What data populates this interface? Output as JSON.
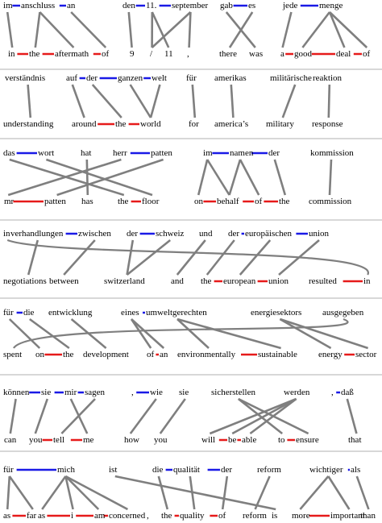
{
  "colors": {
    "link": "#7f7f7f",
    "german_phrase": "#1a1ae6",
    "english_phrase": "#e61a1a",
    "separator": "#b0b0b0"
  },
  "panels": [
    {
      "groups": [
        {
          "top": [
            "im",
            "anschluss",
            "an"
          ],
          "bottom": [
            "in",
            "the",
            "aftermath",
            "of"
          ],
          "top_phrases": [
            [
              0,
              1
            ],
            [
              1,
              2
            ]
          ],
          "bottom_phrases": [
            [
              0,
              1
            ],
            [
              1,
              2
            ],
            [
              2,
              3
            ]
          ],
          "links": [
            [
              0,
              0
            ],
            [
              1,
              1
            ],
            [
              1,
              2
            ],
            [
              2,
              3
            ]
          ]
        },
        {
          "top": [
            "den",
            "11.",
            "september"
          ],
          "bottom": [
            "9",
            "/",
            "11",
            ","
          ],
          "top_phrases": [
            [
              0,
              1
            ],
            [
              1,
              2
            ]
          ],
          "bottom_phrases": [],
          "links": [
            [
              0,
              0
            ],
            [
              1,
              1
            ],
            [
              1,
              2
            ],
            [
              2,
              1
            ],
            [
              2,
              3
            ]
          ]
        },
        {
          "top": [
            "gab",
            "es"
          ],
          "bottom": [
            "there",
            "was"
          ],
          "top_phrases": [
            [
              0,
              1
            ]
          ],
          "bottom_phrases": [],
          "links": [
            [
              0,
              1
            ],
            [
              1,
              0
            ]
          ]
        },
        {
          "top": [
            "jede",
            "menge"
          ],
          "bottom": [
            "a",
            "good",
            "deal",
            "of"
          ],
          "top_phrases": [
            [
              0,
              1
            ]
          ],
          "bottom_phrases": [
            [
              0,
              1
            ],
            [
              1,
              2
            ],
            [
              2,
              3
            ]
          ],
          "links": [
            [
              0,
              0
            ],
            [
              1,
              1
            ],
            [
              1,
              2
            ],
            [
              1,
              3
            ]
          ]
        }
      ]
    },
    {
      "groups": [
        {
          "top": [
            "verständnis"
          ],
          "bottom": [
            "understanding"
          ],
          "top_phrases": [],
          "bottom_phrases": [],
          "links": [
            [
              0,
              0
            ]
          ]
        },
        {
          "top": [
            "auf",
            "der",
            "ganzen",
            "welt"
          ],
          "bottom": [
            "around",
            "the",
            "world"
          ],
          "top_phrases": [
            [
              0,
              1
            ],
            [
              1,
              2
            ],
            [
              2,
              3
            ]
          ],
          "bottom_phrases": [
            [
              0,
              1
            ],
            [
              1,
              2
            ]
          ],
          "links": [
            [
              0,
              0
            ],
            [
              1,
              1
            ],
            [
              2,
              2
            ],
            [
              3,
              2
            ]
          ]
        },
        {
          "top": [
            "für"
          ],
          "bottom": [
            "for"
          ],
          "top_phrases": [],
          "bottom_phrases": [],
          "links": [
            [
              0,
              0
            ]
          ]
        },
        {
          "top": [
            "amerikas"
          ],
          "bottom": [
            "america’s"
          ],
          "top_phrases": [],
          "bottom_phrases": [],
          "links": [
            [
              0,
              0
            ]
          ]
        },
        {
          "top": [
            "militärische"
          ],
          "bottom": [
            "military"
          ],
          "top_phrases": [],
          "bottom_phrases": [],
          "links": [
            [
              0,
              0
            ]
          ]
        },
        {
          "top": [
            "reaktion"
          ],
          "bottom": [
            "response"
          ],
          "top_phrases": [],
          "bottom_phrases": [],
          "links": [
            [
              0,
              0
            ]
          ]
        }
      ]
    },
    {
      "groups": [
        {
          "top": [
            "das",
            "wort",
            "hat",
            "herr",
            "patten"
          ],
          "bottom": [
            "mr",
            "patten",
            "has",
            "the",
            "floor"
          ],
          "top_phrases": [
            [
              0,
              1
            ],
            [
              3,
              4
            ]
          ],
          "bottom_phrases": [
            [
              0,
              1
            ],
            [
              3,
              4
            ]
          ],
          "links": [
            [
              0,
              3
            ],
            [
              1,
              4
            ],
            [
              2,
              2
            ],
            [
              3,
              0
            ],
            [
              4,
              1
            ]
          ]
        },
        {
          "top": [
            "im",
            "namen",
            "der"
          ],
          "bottom": [
            "on",
            "behalf",
            "of",
            "the"
          ],
          "top_phrases": [
            [
              0,
              1
            ],
            [
              1,
              2
            ]
          ],
          "bottom_phrases": [
            [
              0,
              1
            ],
            [
              1,
              2
            ],
            [
              2,
              3
            ]
          ],
          "links": [
            [
              0,
              0
            ],
            [
              0,
              1
            ],
            [
              1,
              1
            ],
            [
              1,
              2
            ],
            [
              2,
              3
            ]
          ]
        },
        {
          "top": [
            "kommission"
          ],
          "bottom": [
            "commission"
          ],
          "top_phrases": [],
          "bottom_phrases": [],
          "links": [
            [
              0,
              0
            ]
          ]
        }
      ]
    },
    {
      "groups": [
        {
          "top": [
            "in",
            "verhandlungen",
            "zwischen",
            "der",
            "schweiz",
            "und",
            "der",
            "europäischen",
            "union"
          ],
          "bottom": [
            "negotiations",
            "between",
            "switzerland",
            "and",
            "the",
            "european",
            "union",
            "resulted",
            "in"
          ],
          "top_phrases": [
            [
              1,
              2
            ],
            [
              3,
              4
            ],
            [
              6,
              7
            ],
            [
              7,
              8
            ]
          ],
          "bottom_phrases": [
            [
              0,
              1
            ],
            [
              4,
              5
            ],
            [
              5,
              6
            ],
            [
              7,
              8
            ]
          ],
          "links": [
            [
              0,
              8
            ],
            [
              1,
              0
            ],
            [
              2,
              1
            ],
            [
              3,
              2
            ],
            [
              4,
              2
            ],
            [
              5,
              3
            ],
            [
              6,
              4
            ],
            [
              7,
              5
            ],
            [
              8,
              6
            ]
          ]
        }
      ]
    },
    {
      "groups": [
        {
          "top": [
            "für",
            "die",
            "entwicklung",
            "eines",
            "umweltgerechten",
            "energiesektors",
            "ausgegeben"
          ],
          "bottom": [
            "spent",
            "on",
            "the",
            "development",
            "of",
            "an",
            "environmentally",
            "sustainable",
            "energy",
            "sector"
          ],
          "top_phrases": [
            [
              0,
              1
            ],
            [
              3,
              4
            ]
          ],
          "bottom_phrases": [
            [
              1,
              2
            ],
            [
              4,
              5
            ],
            [
              6,
              7
            ],
            [
              8,
              9
            ]
          ],
          "links": [
            [
              0,
              1
            ],
            [
              1,
              2
            ],
            [
              2,
              3
            ],
            [
              3,
              4
            ],
            [
              3,
              5
            ],
            [
              4,
              6
            ],
            [
              4,
              7
            ],
            [
              5,
              8
            ],
            [
              5,
              9
            ],
            [
              6,
              0
            ]
          ]
        }
      ]
    },
    {
      "groups": [
        {
          "top": [
            "können",
            "sie",
            "mir",
            "sagen",
            ",",
            "wie",
            "sie",
            "sicherstellen",
            "werden",
            ",",
            "daß"
          ],
          "bottom": [
            "can",
            "you",
            "tell",
            "me",
            "how",
            "you",
            "will",
            "be",
            "able",
            "to",
            "ensure",
            "that"
          ],
          "top_phrases": [
            [
              0,
              1
            ],
            [
              1,
              2
            ],
            [
              2,
              3
            ],
            [
              4,
              5
            ],
            [
              9,
              10
            ]
          ],
          "bottom_phrases": [
            [
              1,
              2
            ],
            [
              2,
              3
            ],
            [
              6,
              7
            ],
            [
              7,
              8
            ],
            [
              9,
              10
            ]
          ],
          "links": [
            [
              0,
              0
            ],
            [
              1,
              1
            ],
            [
              2,
              3
            ],
            [
              3,
              2
            ],
            [
              5,
              4
            ],
            [
              6,
              5
            ],
            [
              7,
              9
            ],
            [
              7,
              10
            ],
            [
              8,
              6
            ],
            [
              8,
              7
            ],
            [
              8,
              8
            ],
            [
              10,
              11
            ]
          ]
        }
      ]
    },
    {
      "groups": [
        {
          "top": [
            "für",
            "mich",
            "ist",
            "die",
            "qualität",
            "der",
            "reform",
            "wichtiger",
            "als"
          ],
          "bottom": [
            "as",
            "far",
            "as",
            "i",
            "am",
            "concerned",
            ",",
            "the",
            "quality",
            "of",
            "reform",
            "is",
            "more",
            "important",
            "than"
          ],
          "top_phrases": [
            [
              0,
              1
            ],
            [
              3,
              4
            ],
            [
              4,
              5
            ],
            [
              7,
              8
            ]
          ],
          "bottom_phrases": [
            [
              0,
              1
            ],
            [
              1,
              2
            ],
            [
              2,
              3
            ],
            [
              3,
              4
            ],
            [
              4,
              5
            ],
            [
              7,
              8
            ],
            [
              8,
              9
            ],
            [
              12,
              13
            ],
            [
              13,
              14
            ]
          ],
          "links": [
            [
              0,
              0
            ],
            [
              0,
              1
            ],
            [
              1,
              2
            ],
            [
              1,
              3
            ],
            [
              1,
              4
            ],
            [
              1,
              5
            ],
            [
              2,
              11
            ],
            [
              3,
              7
            ],
            [
              4,
              8
            ],
            [
              5,
              9
            ],
            [
              6,
              10
            ],
            [
              7,
              12
            ],
            [
              7,
              13
            ],
            [
              8,
              14
            ]
          ]
        }
      ]
    }
  ]
}
